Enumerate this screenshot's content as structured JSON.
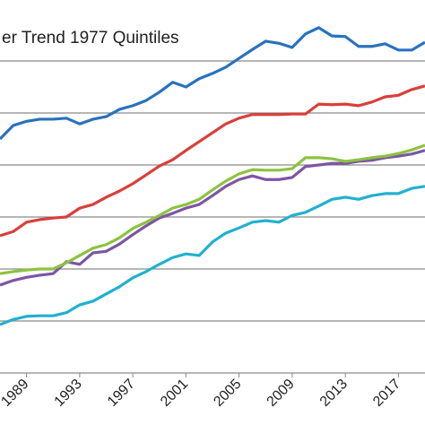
{
  "chart_data": {
    "type": "line",
    "title": "er Trend 1977 Quintiles",
    "x": [
      1987,
      1988,
      1989,
      1990,
      1991,
      1992,
      1993,
      1994,
      1995,
      1996,
      1997,
      1998,
      1999,
      2000,
      2001,
      2002,
      2003,
      2004,
      2005,
      2006,
      2007,
      2008,
      2009,
      2010,
      2011,
      2012,
      2013,
      2014,
      2015,
      2016,
      2017,
      2018,
      2019
    ],
    "xlim": [
      1987,
      2019
    ],
    "xticks": [
      1989,
      1993,
      1997,
      2001,
      2005,
      2009,
      2013,
      2017
    ],
    "ylim": [
      0,
      7.2
    ],
    "yticks": [
      0,
      1,
      2,
      3,
      4,
      5,
      6
    ],
    "grid": true,
    "series": [
      {
        "color": "#2a72bd",
        "values": [
          4.5,
          4.76,
          4.84,
          4.88,
          4.88,
          4.9,
          4.79,
          4.88,
          4.93,
          5.07,
          5.14,
          5.24,
          5.4,
          5.59,
          5.5,
          5.66,
          5.76,
          5.88,
          6.05,
          6.22,
          6.38,
          6.34,
          6.26,
          6.52,
          6.64,
          6.48,
          6.47,
          6.28,
          6.28,
          6.33,
          6.21,
          6.21,
          6.36
        ]
      },
      {
        "color": "#d8403a",
        "values": [
          2.64,
          2.72,
          2.9,
          2.95,
          2.98,
          3.0,
          3.17,
          3.24,
          3.38,
          3.5,
          3.64,
          3.81,
          3.98,
          4.1,
          4.28,
          4.45,
          4.62,
          4.79,
          4.9,
          4.97,
          4.97,
          4.97,
          4.98,
          4.98,
          5.17,
          5.16,
          5.17,
          5.14,
          5.21,
          5.31,
          5.34,
          5.45,
          5.52
        ]
      },
      {
        "color": "#8cc33f",
        "values": [
          1.91,
          1.95,
          1.98,
          2.0,
          2.0,
          2.12,
          2.26,
          2.4,
          2.47,
          2.6,
          2.78,
          2.9,
          3.03,
          3.17,
          3.24,
          3.34,
          3.52,
          3.69,
          3.83,
          3.91,
          3.9,
          3.9,
          3.93,
          4.14,
          4.14,
          4.12,
          4.07,
          4.1,
          4.14,
          4.17,
          4.22,
          4.29,
          4.38
        ]
      },
      {
        "color": "#7d55a5",
        "values": [
          1.69,
          1.78,
          1.84,
          1.88,
          1.91,
          2.14,
          2.09,
          2.31,
          2.34,
          2.48,
          2.66,
          2.83,
          2.98,
          3.07,
          3.17,
          3.24,
          3.41,
          3.59,
          3.72,
          3.79,
          3.72,
          3.72,
          3.76,
          3.97,
          4.0,
          4.03,
          4.03,
          4.07,
          4.09,
          4.14,
          4.17,
          4.21,
          4.28
        ]
      },
      {
        "color": "#22b0d0",
        "values": [
          0.93,
          1.03,
          1.09,
          1.1,
          1.1,
          1.16,
          1.31,
          1.38,
          1.52,
          1.66,
          1.83,
          1.95,
          2.09,
          2.22,
          2.29,
          2.26,
          2.52,
          2.69,
          2.79,
          2.9,
          2.93,
          2.9,
          3.03,
          3.09,
          3.21,
          3.34,
          3.38,
          3.34,
          3.41,
          3.45,
          3.45,
          3.55,
          3.59
        ]
      }
    ]
  }
}
